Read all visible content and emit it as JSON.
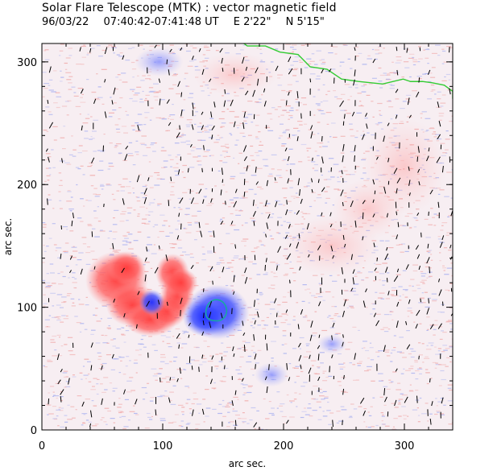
{
  "header": {
    "title": "Solar Flare Telescope (MTK) : vector magnetic field",
    "date": "96/03/22",
    "time_range": "07:40:42-07:41:48 UT",
    "east_offset": "E 2'22\"",
    "north_offset": "N 5'15\""
  },
  "axes": {
    "xlabel": "arc sec.",
    "ylabel": "arc sec.",
    "xlim": [
      0,
      340
    ],
    "ylim": [
      0,
      315
    ],
    "xticks": [
      "0",
      "100",
      "200",
      "300"
    ],
    "yticks": [
      "0",
      "100",
      "200",
      "300"
    ]
  },
  "colors": {
    "positive": "#ff4d4d",
    "negative": "#3a4cff",
    "background_noise_pos": "#f0a8a8",
    "background_noise_neg": "#a8b0f0",
    "contour_limb": "#33cc33",
    "contour_spot": "#19a8a0",
    "vectors": "#000000"
  }
}
